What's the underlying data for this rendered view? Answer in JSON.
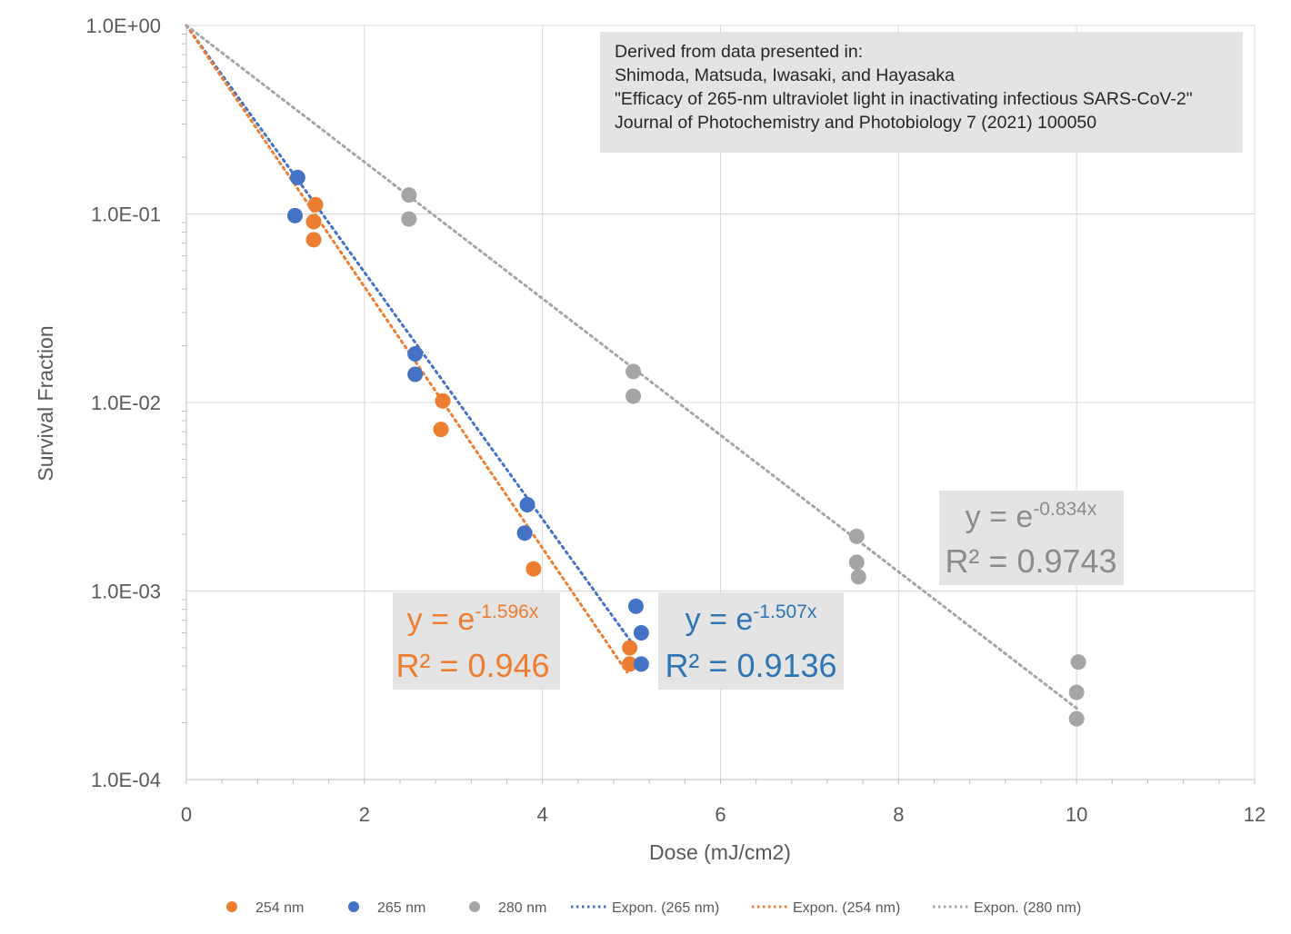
{
  "chart_data": {
    "type": "scatter",
    "title": "",
    "xlabel": "Dose (mJ/cm2)",
    "ylabel": "Survival Fraction",
    "x_range": [
      0,
      12
    ],
    "x_ticks": [
      0,
      2,
      4,
      6,
      8,
      10,
      12
    ],
    "x_tick_labels": [
      "0",
      "2",
      "4",
      "6",
      "8",
      "10",
      "12"
    ],
    "y_scale": "log",
    "y_range": [
      0.0001,
      1
    ],
    "y_ticks": [
      1,
      0.1,
      0.01,
      0.001,
      0.0001
    ],
    "y_tick_labels": [
      "1.0E+00",
      "1.0E-01",
      "1.0E-02",
      "1.0E-03",
      "1.0E-04"
    ],
    "grid": true,
    "legend_position": "bottom",
    "colors": {
      "254": "#ED7D31",
      "265": "#4472C4",
      "280": "#A5A5A5",
      "label_box": "#E4E4E4",
      "label_265_text": "#2E75B6",
      "grid": "#D9D9D9",
      "axis_text": "#595959"
    },
    "series": [
      {
        "name": "254 nm",
        "color": "#ED7D31",
        "points": [
          {
            "x": 1.45,
            "y": 0.112
          },
          {
            "x": 1.43,
            "y": 0.091
          },
          {
            "x": 1.43,
            "y": 0.073
          },
          {
            "x": 2.88,
            "y": 0.0102
          },
          {
            "x": 2.86,
            "y": 0.0072
          },
          {
            "x": 3.9,
            "y": 0.00131
          },
          {
            "x": 4.98,
            "y": 0.0005
          },
          {
            "x": 4.98,
            "y": 0.00041
          }
        ]
      },
      {
        "name": "265 nm",
        "color": "#4472C4",
        "points": [
          {
            "x": 1.25,
            "y": 0.156
          },
          {
            "x": 1.22,
            "y": 0.098
          },
          {
            "x": 2.57,
            "y": 0.0181
          },
          {
            "x": 2.57,
            "y": 0.0141
          },
          {
            "x": 3.83,
            "y": 0.00287
          },
          {
            "x": 3.8,
            "y": 0.00203
          },
          {
            "x": 5.05,
            "y": 0.00083
          },
          {
            "x": 5.11,
            "y": 0.0006
          },
          {
            "x": 5.11,
            "y": 0.00041
          }
        ]
      },
      {
        "name": "280 nm",
        "color": "#A5A5A5",
        "points": [
          {
            "x": 2.5,
            "y": 0.126
          },
          {
            "x": 2.5,
            "y": 0.094
          },
          {
            "x": 5.02,
            "y": 0.0146
          },
          {
            "x": 5.02,
            "y": 0.0108
          },
          {
            "x": 7.53,
            "y": 0.00195
          },
          {
            "x": 7.53,
            "y": 0.00142
          },
          {
            "x": 7.55,
            "y": 0.00119
          },
          {
            "x": 10.02,
            "y": 0.00042
          },
          {
            "x": 10.0,
            "y": 0.00029
          },
          {
            "x": 10.0,
            "y": 0.00021
          }
        ]
      }
    ],
    "trendlines": [
      {
        "name": "Expon. (265 nm)",
        "color": "#4472C4",
        "k": 1.507,
        "x_end": 5.0
      },
      {
        "name": "Expon. (254 nm)",
        "color": "#ED7D31",
        "k": 1.596,
        "x_end": 4.95
      },
      {
        "name": "Expon. (280 nm)",
        "color": "#A5A5A5",
        "k": 0.834,
        "x_end": 10.0
      }
    ],
    "legend": [
      {
        "label": "254 nm",
        "kind": "marker",
        "color": "#ED7D31"
      },
      {
        "label": "265 nm",
        "kind": "marker",
        "color": "#4472C4"
      },
      {
        "label": "280 nm",
        "kind": "marker",
        "color": "#A5A5A5"
      },
      {
        "label": "Expon. (265 nm)",
        "kind": "line",
        "color": "#4472C4"
      },
      {
        "label": "Expon. (254 nm)",
        "kind": "line",
        "color": "#ED7D31"
      },
      {
        "label": "Expon. (280 nm)",
        "kind": "line",
        "color": "#A5A5A5"
      }
    ],
    "equation_labels": [
      {
        "series": "254 nm",
        "eq_base": "y = e",
        "eq_exp": "-1.596x",
        "r2": "R² = 0.946",
        "color": "#ED7D31"
      },
      {
        "series": "265 nm",
        "eq_base": "y = e",
        "eq_exp": "-1.507x",
        "r2": "R² = 0.9136",
        "color": "#2E75B6"
      },
      {
        "series": "280 nm",
        "eq_base": "y = e",
        "eq_exp": "-0.834x",
        "r2": "R² = 0.9743",
        "color": "#8C8C8C"
      }
    ],
    "annotation": {
      "lines": [
        "Derived from data presented in:",
        "Shimoda, Matsuda, Iwasaki, and Hayasaka",
        "\"Efficacy of 265-nm ultraviolet light in inactivating infectious SARS-CoV-2\"",
        "Journal of Photochemistry and Photobiology 7 (2021) 100050"
      ]
    }
  }
}
